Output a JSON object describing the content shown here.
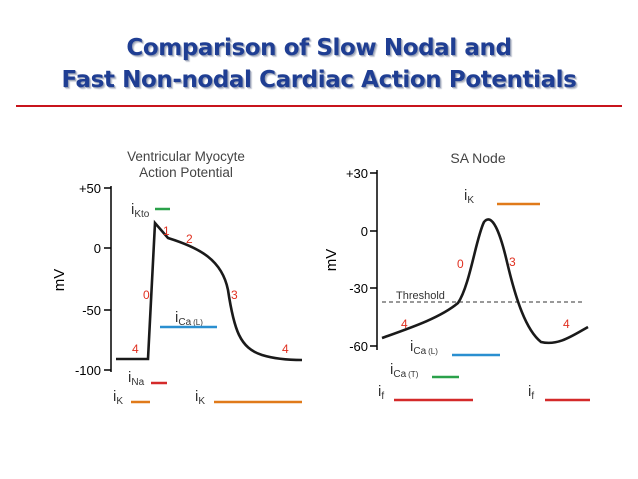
{
  "title": {
    "line1": "Comparison of Slow Nodal and",
    "line2": "Fast Non-nodal Cardiac Action Potentials"
  },
  "colors": {
    "title": "#1f3e93",
    "rule": "#c8141c",
    "phase_label": "#e03020",
    "iK": "#e07a1a",
    "iNa": "#d42a2a",
    "iKto": "#2aa14a",
    "iCaL": "#2a8fd0",
    "iCaT": "#2aa14a",
    "if": "#d42a2a"
  },
  "ventricular": {
    "title_line1": "Ventricular Myocyte",
    "title_line2": "Action Potential",
    "ylabel": "mV",
    "ticks": [
      "+50",
      "0",
      "-50",
      "-100"
    ],
    "phases": [
      "0",
      "1",
      "2",
      "3",
      "4",
      "4"
    ],
    "currents": {
      "ikto_main": "i",
      "ikto_sub": "Kto",
      "ical_main": "i",
      "ical_sub": "Ca",
      "ical_paren": "(L)",
      "ina_main": "i",
      "ina_sub": "Na",
      "ik1_main": "i",
      "ik1_sub": "K",
      "ik2_main": "i",
      "ik2_sub": "K"
    }
  },
  "sa_node": {
    "title": "SA Node",
    "ylabel": "mV",
    "ticks": [
      "+30",
      "0",
      "-30",
      "-60"
    ],
    "threshold": "Threshold",
    "phases": [
      "0",
      "3",
      "4",
      "4"
    ],
    "currents": {
      "ik_main": "i",
      "ik_sub": "K",
      "ical_main": "i",
      "ical_sub": "Ca",
      "ical_paren": "(L)",
      "icat_main": "i",
      "icat_sub": "Ca",
      "icat_paren": "(T)",
      "if1_main": "i",
      "if1_sub": "f",
      "if2_main": "i",
      "if2_sub": "f"
    }
  }
}
